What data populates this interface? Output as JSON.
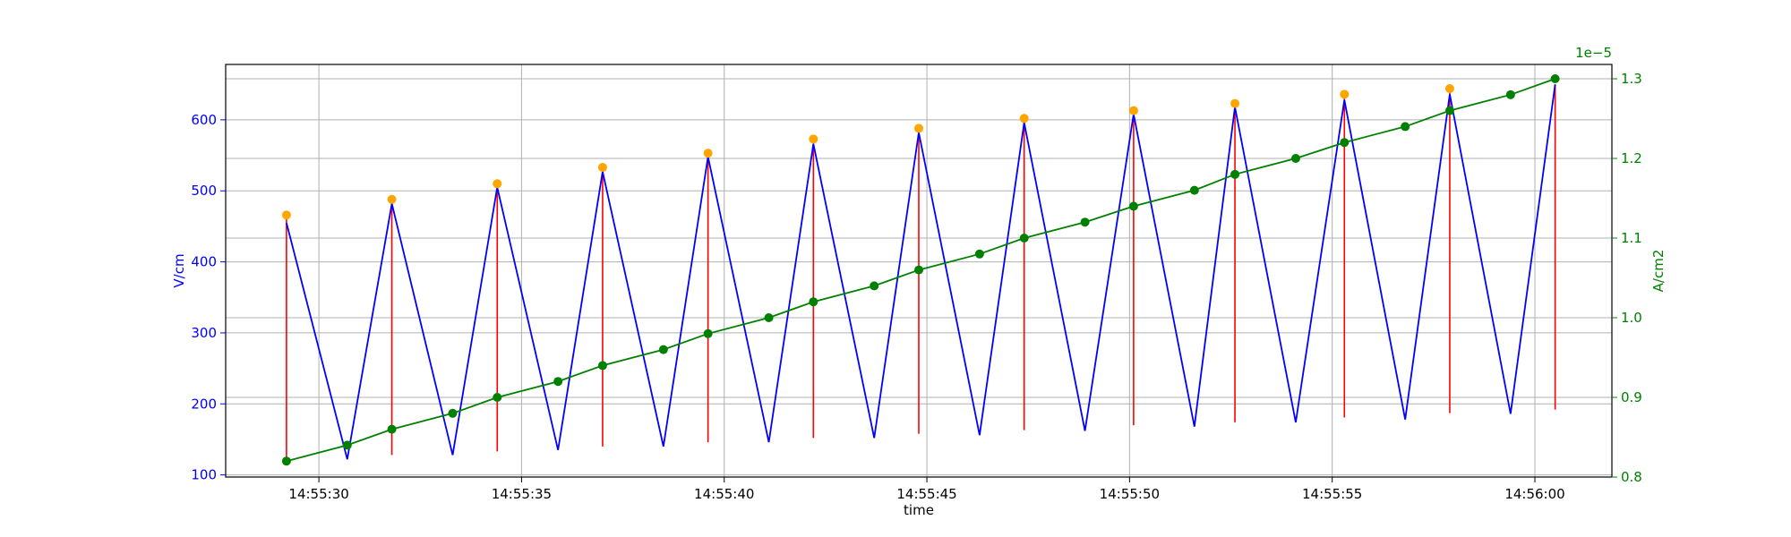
{
  "chart_data": {
    "type": "line",
    "xlabel": "time",
    "ylabel_left": "V/cm",
    "ylabel_right": "A/cm2",
    "right_offset_text": "1e−5",
    "x_tick_labels": [
      "14:55:30",
      "14:55:35",
      "14:55:40",
      "14:55:45",
      "14:55:50",
      "14:55:55",
      "14:56:00"
    ],
    "x_tick_seconds": [
      30,
      35,
      40,
      45,
      50,
      55,
      60
    ],
    "xlim_seconds": [
      27.7,
      61.9
    ],
    "ylim_left": [
      97,
      678
    ],
    "yticks_left": [
      100,
      200,
      300,
      400,
      500,
      600
    ],
    "ylim_right": [
      0.8,
      1.318
    ],
    "yticks_right": [
      0.8,
      0.9,
      1.0,
      1.1,
      1.2,
      1.3
    ],
    "grid": true,
    "colors": {
      "voltage_line": "#0000ff",
      "peaks": "#ffa500",
      "vertical_lines": "#ff0000",
      "current_line": "#008000",
      "axis_left": "#0000ff",
      "axis_right": "#008000"
    },
    "series": [
      {
        "axis": "left",
        "style": "line",
        "color": "#0000ff",
        "x": [
          29.2,
          30.7,
          31.8,
          33.3,
          34.4,
          35.9,
          37.0,
          38.5,
          39.6,
          41.1,
          42.2,
          43.7,
          44.8,
          46.3,
          47.4,
          48.9,
          50.1,
          51.6,
          52.6,
          54.1,
          55.3,
          56.8,
          57.9,
          59.4,
          60.5
        ],
        "y": [
          455,
          122,
          482,
          128,
          505,
          135,
          527,
          140,
          548,
          146,
          566,
          152,
          582,
          156,
          596,
          162,
          608,
          168,
          618,
          174,
          628,
          178,
          636,
          186,
          650
        ]
      },
      {
        "axis": "left",
        "style": "points",
        "color": "#ffa500",
        "x": [
          29.2,
          31.8,
          34.4,
          37.0,
          39.6,
          42.2,
          44.8,
          47.4,
          50.1,
          52.6,
          55.3,
          57.9
        ],
        "y": [
          466,
          488,
          510,
          533,
          553,
          573,
          588,
          602,
          613,
          623,
          636,
          644
        ]
      },
      {
        "axis": "left",
        "style": "vlines",
        "color": "#ff0000",
        "x": [
          29.2,
          31.8,
          34.4,
          37.0,
          39.6,
          42.2,
          44.8,
          47.4,
          50.1,
          52.6,
          55.3,
          57.9,
          60.5
        ],
        "ymin": [
          125,
          128,
          133,
          140,
          146,
          152,
          158,
          163,
          170,
          174,
          181,
          187,
          192
        ],
        "ymax": [
          466,
          488,
          510,
          533,
          553,
          573,
          588,
          602,
          613,
          623,
          636,
          644,
          650
        ]
      },
      {
        "axis": "right",
        "style": "line-markers",
        "color": "#008000",
        "x": [
          29.2,
          30.7,
          31.8,
          33.3,
          34.4,
          35.9,
          37.0,
          38.5,
          39.6,
          41.1,
          42.2,
          43.7,
          44.8,
          46.3,
          47.4,
          48.9,
          50.1,
          51.6,
          52.6,
          54.1,
          55.3,
          56.8,
          57.9,
          59.4,
          60.5
        ],
        "y": [
          0.82,
          0.84,
          0.86,
          0.88,
          0.9,
          0.92,
          0.94,
          0.96,
          0.98,
          1.0,
          1.02,
          1.04,
          1.06,
          1.08,
          1.1,
          1.12,
          1.14,
          1.16,
          1.18,
          1.2,
          1.22,
          1.24,
          1.26,
          1.28,
          1.3
        ]
      }
    ]
  }
}
